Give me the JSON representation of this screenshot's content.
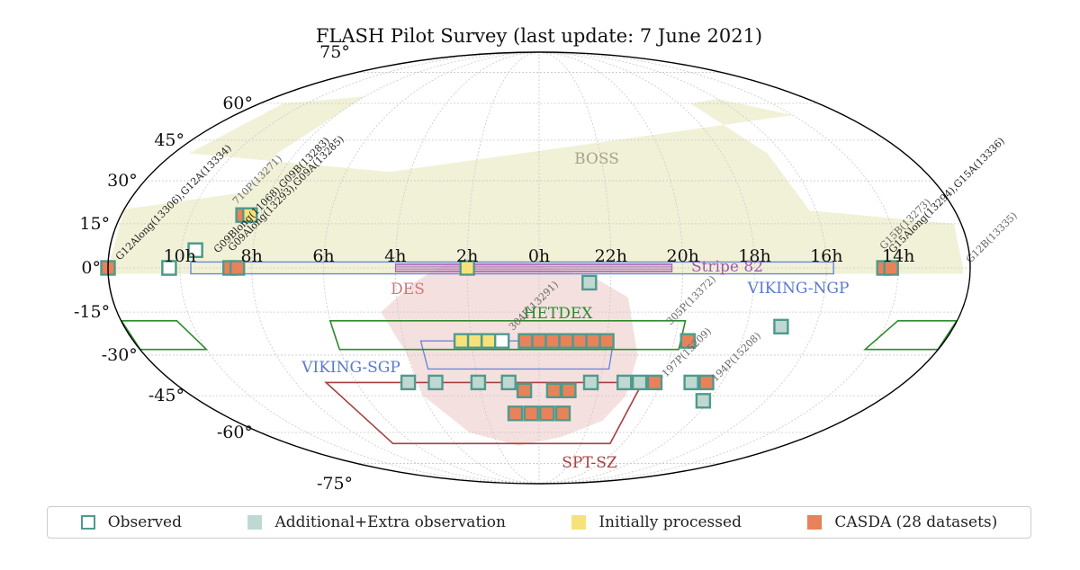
{
  "chart_data": {
    "type": "scatter",
    "projection": "mollweide",
    "title": "FLASH Pilot Survey (last update: 7 June 2021)",
    "ra_tick_labels": [
      "10h",
      "8h",
      "6h",
      "4h",
      "2h",
      "0h",
      "22h",
      "20h",
      "18h",
      "16h",
      "14h"
    ],
    "ra_tick_hours": [
      10,
      8,
      6,
      4,
      2,
      0,
      22,
      20,
      18,
      16,
      14
    ],
    "dec_tick_labels": [
      "75°",
      "60°",
      "45°",
      "30°",
      "15°",
      "0°",
      "-15°",
      "-30°",
      "-45°",
      "-60°",
      "-75°"
    ],
    "dec_tick_values": [
      75,
      60,
      45,
      30,
      15,
      0,
      -15,
      -30,
      -45,
      -60,
      -75
    ],
    "grid": true,
    "legend_placement": "bottom",
    "colors": {
      "observed_edge": "#4f9a8c",
      "additional_fill": "#bfd8d2",
      "initially_fill": "#f7e27a",
      "casda_fill": "#e8825a",
      "boss_fill": "#f1f1d8",
      "des_fill": "#f3dada",
      "stripe82": "#a056b0",
      "viking": "#6a87d8",
      "hetdex": "#2d8a2d",
      "spt": "#a84040"
    },
    "legend": [
      {
        "label": "Observed",
        "fill": "#ffffff"
      },
      {
        "label": "Additional+Extra observation",
        "fill": "#bfd8d2"
      },
      {
        "label": "Initially processed",
        "fill": "#f7e27a"
      },
      {
        "label": "CASDA (28 datasets)",
        "fill": "#e8825a"
      }
    ],
    "regions": [
      {
        "label": "BOSS",
        "color": "#a7a288"
      },
      {
        "label": "DES",
        "color": "#c77b7b"
      },
      {
        "label": "Stripe 82",
        "color": "#a056b0"
      },
      {
        "label": "VIKING-NGP",
        "color": "#5a78d0"
      },
      {
        "label": "VIKING-SGP",
        "color": "#5a78d0"
      },
      {
        "label": "HETDEX",
        "color": "#2d8a2d"
      },
      {
        "label": "SPT-SZ",
        "color": "#a84040"
      }
    ],
    "field_labels": [
      "G12Along(13306),G12A(13334)",
      "710P(13271)",
      "G09Blong(11068),G09B(13283)",
      "G09Along(13293),G09A(13285)",
      "G15B(13273)",
      "G15Along(13294),G15A(13336)",
      "G12B(13335)",
      "304P(13291)",
      "305P(13372)",
      "197P(15209)",
      "194P(15208)"
    ],
    "fields": [
      {
        "ra": 10.3,
        "dec": 0,
        "status": "casda"
      },
      {
        "ra": 10.3,
        "dec": 0,
        "status": "observed"
      },
      {
        "ra": 8.6,
        "dec": 0,
        "status": "casda"
      },
      {
        "ra": 8.4,
        "dec": 0,
        "status": "casda"
      },
      {
        "ra": 9.6,
        "dec": 6,
        "status": "initial"
      },
      {
        "ra": 9.6,
        "dec": 6,
        "status": "observed"
      },
      {
        "ra": 8.5,
        "dec": 18,
        "status": "casda"
      },
      {
        "ra": 8.3,
        "dec": 18,
        "status": "initial"
      },
      {
        "ra": 2.0,
        "dec": 0,
        "status": "initial"
      },
      {
        "ra": 14.4,
        "dec": 0,
        "status": "casda"
      },
      {
        "ra": 14.2,
        "dec": 0,
        "status": "casda"
      },
      {
        "ra": 12.0,
        "dec": 0,
        "status": "casda"
      },
      {
        "ra": 22.6,
        "dec": -5,
        "status": "additional"
      },
      {
        "ra": 17.0,
        "dec": -20,
        "status": "additional"
      },
      {
        "ra": 2.3,
        "dec": -25,
        "status": "initial"
      },
      {
        "ra": 1.9,
        "dec": -25,
        "status": "initial"
      },
      {
        "ra": 1.5,
        "dec": -25,
        "status": "initial"
      },
      {
        "ra": 1.1,
        "dec": -25,
        "status": "observed"
      },
      {
        "ra": 0.4,
        "dec": -25,
        "status": "casda"
      },
      {
        "ra": 0.0,
        "dec": -25,
        "status": "casda"
      },
      {
        "ra": 23.6,
        "dec": -25,
        "status": "casda"
      },
      {
        "ra": 23.2,
        "dec": -25,
        "status": "casda"
      },
      {
        "ra": 22.8,
        "dec": -25,
        "status": "casda"
      },
      {
        "ra": 22.4,
        "dec": -25,
        "status": "casda"
      },
      {
        "ra": 22.0,
        "dec": -25,
        "status": "casda"
      },
      {
        "ra": 19.6,
        "dec": -25,
        "status": "casda"
      },
      {
        "ra": 4.3,
        "dec": -40,
        "status": "additional"
      },
      {
        "ra": 3.4,
        "dec": -40,
        "status": "additional"
      },
      {
        "ra": 2.0,
        "dec": -40,
        "status": "additional"
      },
      {
        "ra": 1.0,
        "dec": -40,
        "status": "additional"
      },
      {
        "ra": 0.5,
        "dec": -43,
        "status": "casda"
      },
      {
        "ra": 23.5,
        "dec": -43,
        "status": "casda"
      },
      {
        "ra": 23.0,
        "dec": -43,
        "status": "casda"
      },
      {
        "ra": 22.3,
        "dec": -40,
        "status": "additional"
      },
      {
        "ra": 21.2,
        "dec": -40,
        "status": "additional"
      },
      {
        "ra": 20.7,
        "dec": -40,
        "status": "additional"
      },
      {
        "ra": 20.2,
        "dec": -40,
        "status": "casda"
      },
      {
        "ra": 19.0,
        "dec": -40,
        "status": "additional"
      },
      {
        "ra": 18.5,
        "dec": -40,
        "status": "casda"
      },
      {
        "ra": 18.2,
        "dec": -47,
        "status": "additional"
      },
      {
        "ra": 0.9,
        "dec": -52,
        "status": "casda"
      },
      {
        "ra": 0.3,
        "dec": -52,
        "status": "casda"
      },
      {
        "ra": 23.7,
        "dec": -52,
        "status": "casda"
      },
      {
        "ra": 23.1,
        "dec": -52,
        "status": "casda"
      }
    ]
  }
}
